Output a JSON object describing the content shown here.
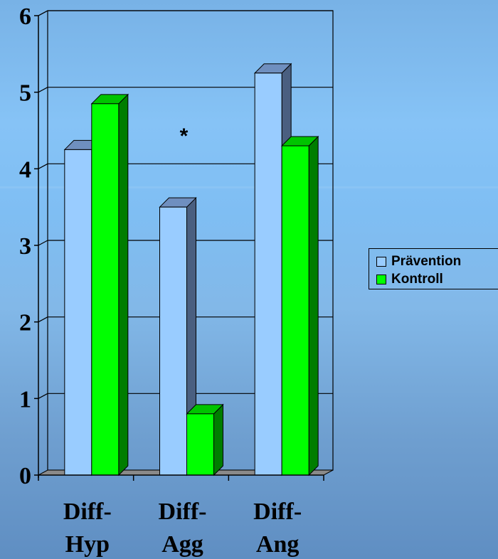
{
  "chart_data": {
    "type": "bar",
    "style": "3d-clustered",
    "categories": [
      [
        "Diff-",
        "Hyp"
      ],
      [
        "Diff-",
        "Agg"
      ],
      [
        "Diff-",
        "Ang"
      ]
    ],
    "series": [
      {
        "name": "Prävention",
        "values": [
          4.25,
          3.5,
          5.25
        ],
        "color": "#99ccff",
        "side_color": "#4a5f80",
        "top_color": "#6f8fbf"
      },
      {
        "name": "Kontroll",
        "values": [
          4.85,
          0.8,
          4.3
        ],
        "color": "#00ff00",
        "side_color": "#007d00",
        "top_color": "#00c400"
      }
    ],
    "ylim": [
      0,
      6
    ],
    "yticks": [
      "0",
      "1",
      "2",
      "3",
      "4",
      "5",
      "6"
    ],
    "grid": true,
    "legend_position": "right",
    "annotations": [
      {
        "text": "*",
        "category_index": 1,
        "y": 4.3
      }
    ]
  }
}
